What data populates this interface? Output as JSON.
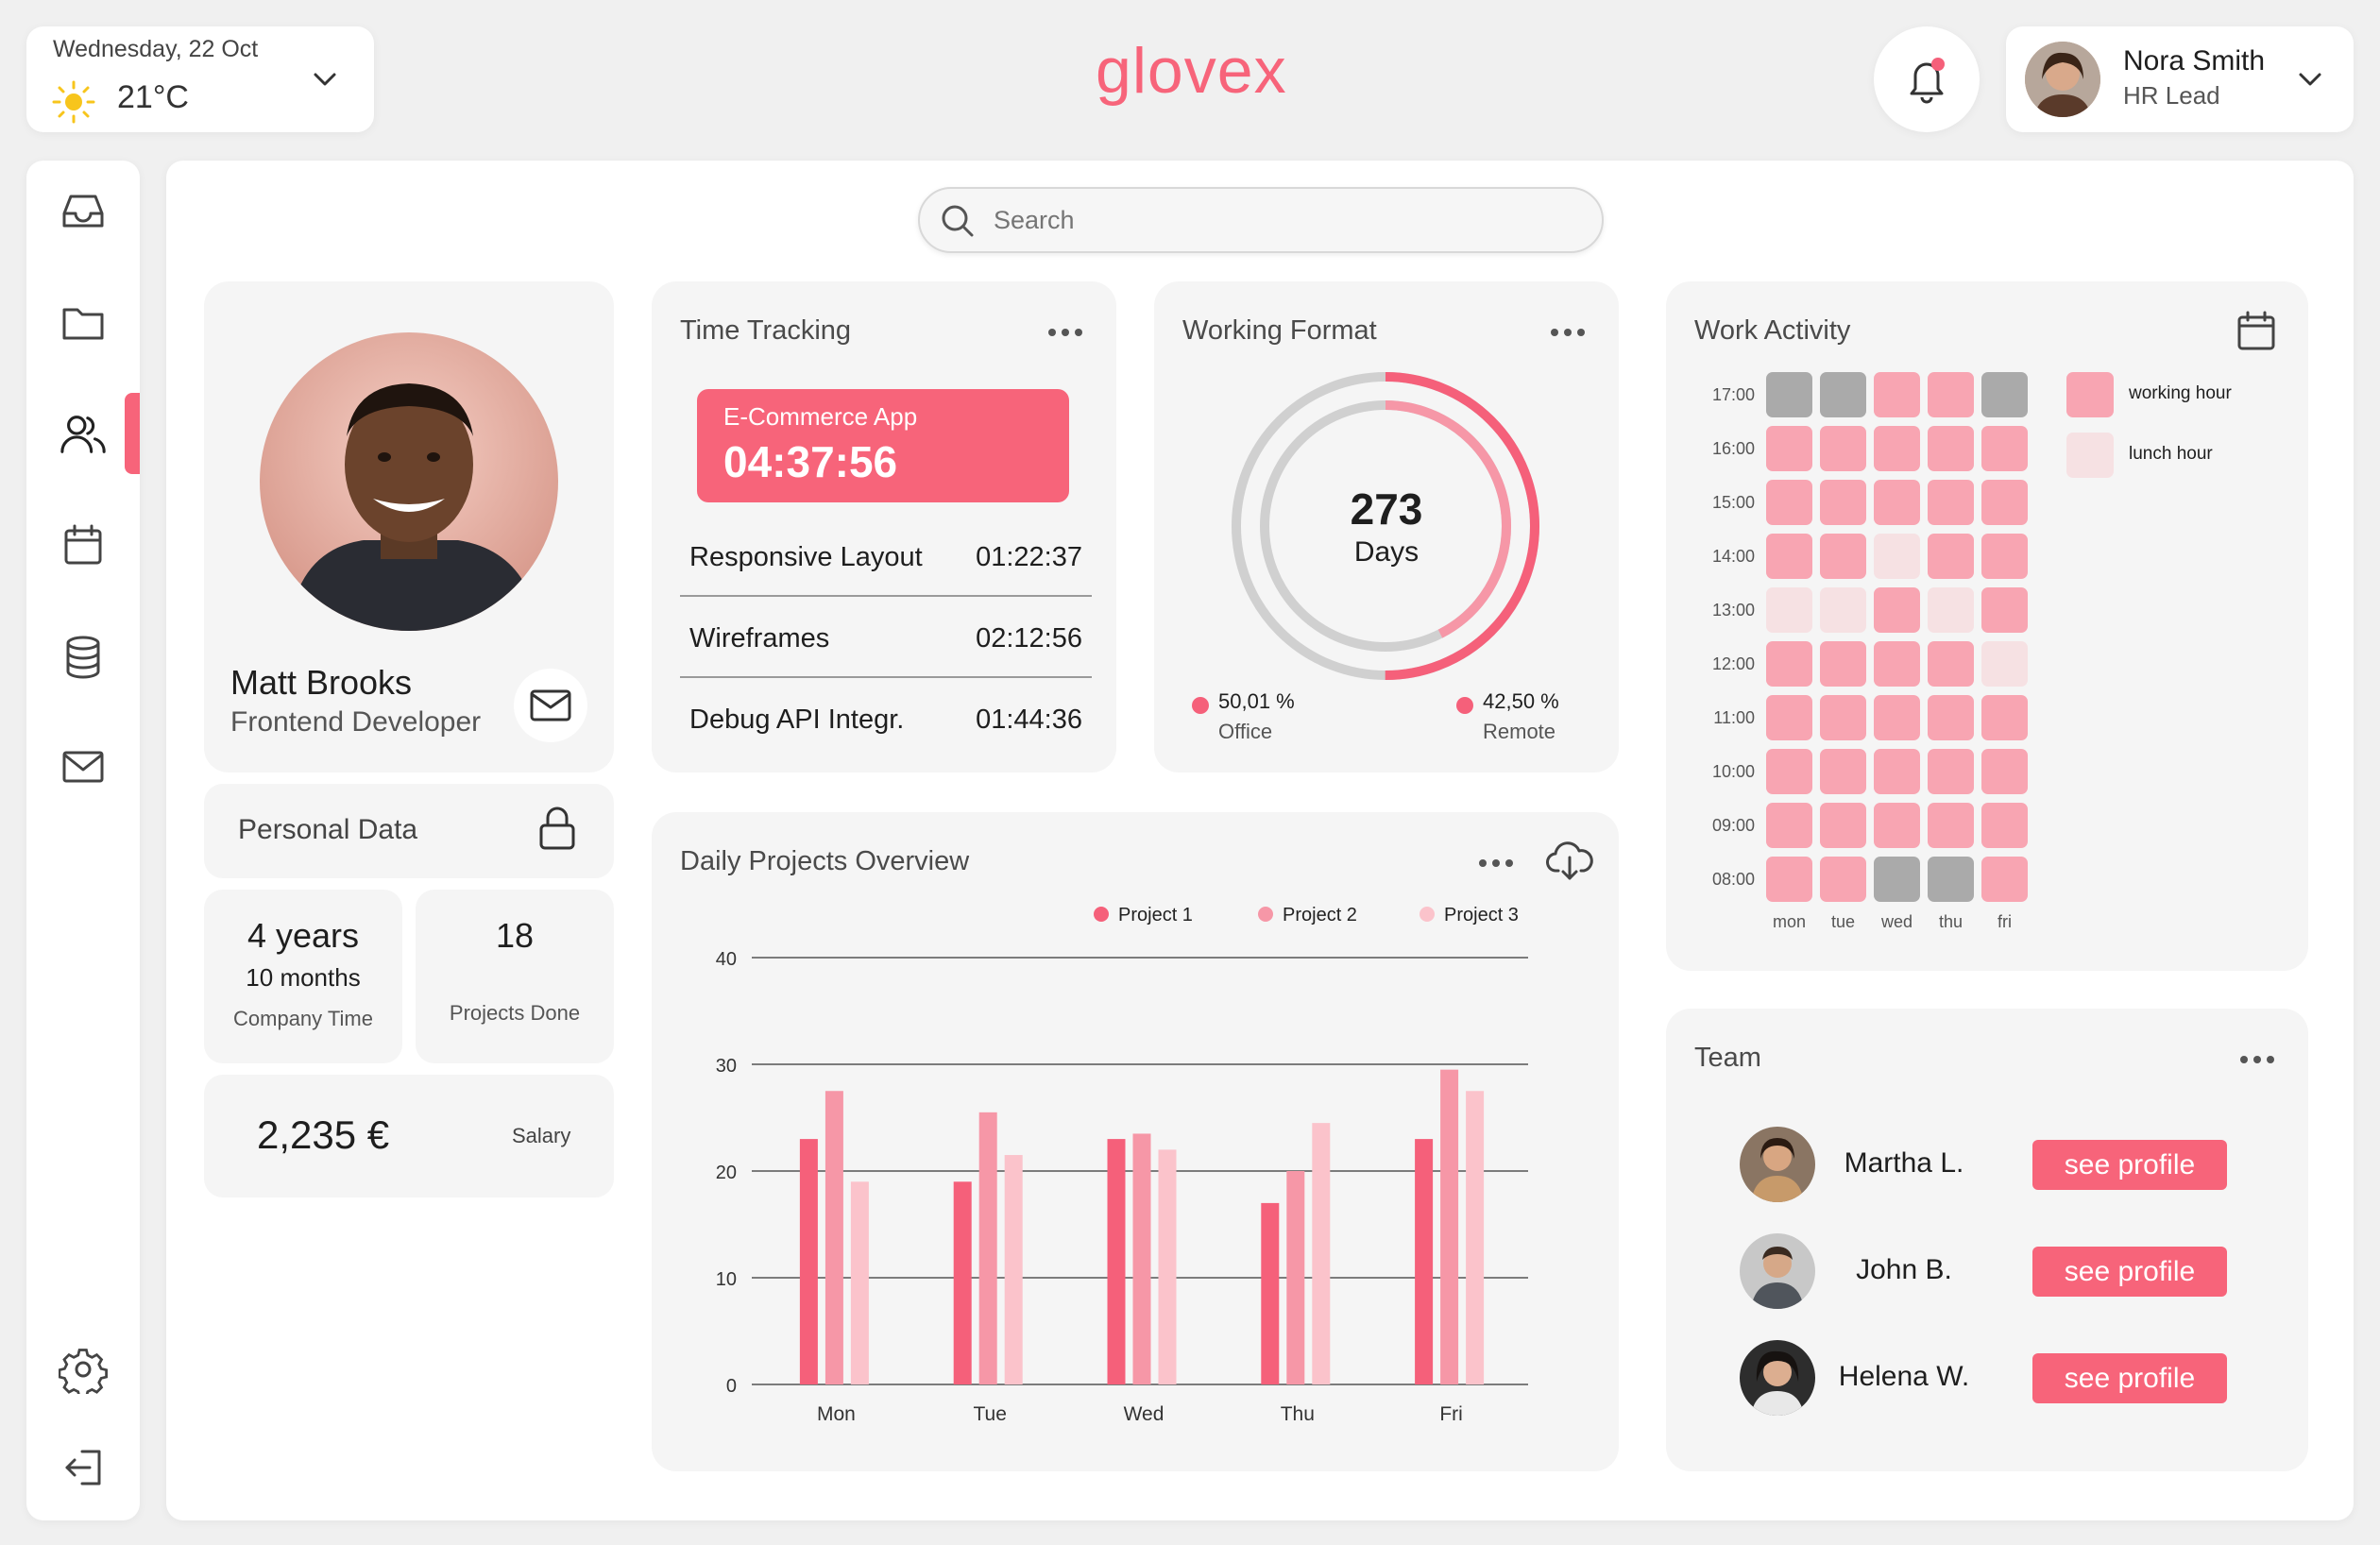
{
  "header": {
    "date": "Wednesday, 22 Oct",
    "temperature": "21°C",
    "brand": "glovex",
    "user_name": "Nora Smith",
    "user_role": "HR Lead"
  },
  "search": {
    "placeholder": "Search"
  },
  "profile": {
    "name": "Matt Brooks",
    "title": "Frontend Developer",
    "personal_data_label": "Personal Data",
    "company_time_years": "4 years",
    "company_time_months": "10 months",
    "company_time_label": "Company Time",
    "projects_done": "18",
    "projects_done_label": "Projects Done",
    "salary": "2,235 €",
    "salary_label": "Salary"
  },
  "time_tracking": {
    "title": "Time Tracking",
    "active": {
      "name": "E-Commerce App",
      "time": "04:37:56"
    },
    "rows": [
      {
        "name": "Responsive Layout",
        "time": "01:22:37"
      },
      {
        "name": "Wireframes",
        "time": "02:12:56"
      },
      {
        "name": "Debug API Integr.",
        "time": "01:44:36"
      }
    ]
  },
  "working_format": {
    "title": "Working Format",
    "center_value": "273",
    "center_label": "Days",
    "office_pct": "50,01 %",
    "office_label": "Office",
    "remote_pct": "42,50 %",
    "remote_label": "Remote",
    "outer_ring_fraction": 0.5001,
    "inner_ring_fraction": 0.425
  },
  "work_activity": {
    "title": "Work Activity",
    "hours": [
      "17:00",
      "16:00",
      "15:00",
      "14:00",
      "13:00",
      "12:00",
      "11:00",
      "10:00",
      "09:00",
      "08:00"
    ],
    "days": [
      "mon",
      "tue",
      "wed",
      "thu",
      "fri"
    ],
    "grid": [
      [
        "off",
        "off",
        "work",
        "work",
        "off"
      ],
      [
        "work",
        "work",
        "work",
        "work",
        "work"
      ],
      [
        "work",
        "work",
        "work",
        "work",
        "work"
      ],
      [
        "work",
        "work",
        "lunch",
        "work",
        "work"
      ],
      [
        "lunch",
        "lunch",
        "work",
        "lunch",
        "work"
      ],
      [
        "work",
        "work",
        "work",
        "work",
        "lunch"
      ],
      [
        "work",
        "work",
        "work",
        "work",
        "work"
      ],
      [
        "work",
        "work",
        "work",
        "work",
        "work"
      ],
      [
        "work",
        "work",
        "work",
        "work",
        "work"
      ],
      [
        "work",
        "work",
        "off",
        "off",
        "work"
      ]
    ],
    "legend": [
      {
        "label": "working hour",
        "color": "#f8a5b2"
      },
      {
        "label": "lunch hour",
        "color": "#f6e1e3"
      }
    ],
    "colors": {
      "work": "#f8a5b2",
      "lunch": "#f6e1e3",
      "off": "#aaaaaa"
    }
  },
  "daily_projects": {
    "title": "Daily Projects Overview"
  },
  "chart_data": {
    "type": "bar",
    "categories": [
      "Mon",
      "Tue",
      "Wed",
      "Thu",
      "Fri"
    ],
    "series": [
      {
        "name": "Project 1",
        "values": [
          23,
          19,
          23,
          17,
          23
        ],
        "color": "#f5607a"
      },
      {
        "name": "Project 2",
        "values": [
          27.5,
          25.5,
          23.5,
          20,
          29.5
        ],
        "color": "#f697a7"
      },
      {
        "name": "Project 3",
        "values": [
          19,
          21.5,
          22,
          24.5,
          27.5
        ],
        "color": "#fbc3cb"
      }
    ],
    "yticks": [
      0,
      10,
      20,
      30,
      40
    ],
    "ylim": [
      0,
      40
    ],
    "title": "Daily Projects Overview",
    "xlabel": "",
    "ylabel": "",
    "legend_position": "top"
  },
  "team": {
    "title": "Team",
    "members": [
      {
        "name": "Martha L.",
        "button": "see profile"
      },
      {
        "name": "John B.",
        "button": "see profile"
      },
      {
        "name": "Helena W.",
        "button": "see profile"
      }
    ]
  },
  "icons": {
    "weather": "sun-icon",
    "notification": "bell-icon",
    "sidebar": [
      "inbox-icon",
      "folder-icon",
      "users-icon",
      "calendar-icon",
      "database-icon",
      "mail-icon",
      "settings-icon",
      "logout-icon"
    ]
  },
  "colors": {
    "accent": "#f7647a",
    "active_indicator": "#f7647a",
    "panel": "#f5f5f5"
  }
}
